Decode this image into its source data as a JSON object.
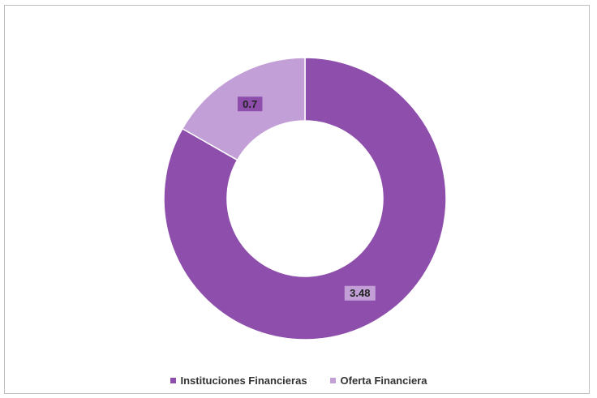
{
  "chart_data": {
    "type": "pie",
    "variant": "donut",
    "categories": [
      "Instituciones Financieras",
      "Oferta Financiera"
    ],
    "values": [
      3.48,
      0.7
    ],
    "data_labels": [
      "3.48",
      "0.7"
    ],
    "colors": [
      "#8e4fac",
      "#c29fd6"
    ],
    "title": "",
    "legend_position": "bottom"
  },
  "legend": {
    "items": [
      {
        "label": "Instituciones Financieras",
        "color": "#8e4fac"
      },
      {
        "label": "Oferta Financiera",
        "color": "#c29fd6"
      }
    ]
  }
}
